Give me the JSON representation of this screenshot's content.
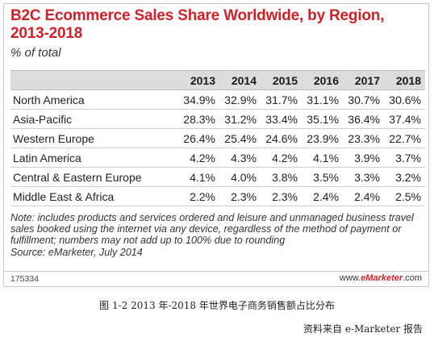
{
  "chart_data": {
    "type": "table",
    "title": "B2C Ecommerce Sales Share Worldwide, by Region, 2013-2018",
    "subtitle": "% of total",
    "row_header": "",
    "columns": [
      "2013",
      "2014",
      "2015",
      "2016",
      "2017",
      "2018"
    ],
    "rows": [
      {
        "region": "North America",
        "values": [
          "34.9%",
          "32.9%",
          "31.7%",
          "31.1%",
          "30.7%",
          "30.6%"
        ]
      },
      {
        "region": "Asia-Pacific",
        "values": [
          "28.3%",
          "31.2%",
          "33.4%",
          "35.1%",
          "36.4%",
          "37.4%"
        ]
      },
      {
        "region": "Western Europe",
        "values": [
          "26.4%",
          "25.4%",
          "24.6%",
          "23.9%",
          "23.3%",
          "22.7%"
        ]
      },
      {
        "region": "Latin America",
        "values": [
          "4.2%",
          "4.3%",
          "4.2%",
          "4.1%",
          "3.9%",
          "3.7%"
        ]
      },
      {
        "region": "Central & Eastern Europe",
        "values": [
          "4.1%",
          "4.0%",
          "3.8%",
          "3.5%",
          "3.3%",
          "3.2%"
        ]
      },
      {
        "region": "Middle East & Africa",
        "values": [
          "2.2%",
          "2.3%",
          "2.3%",
          "2.4%",
          "2.4%",
          "2.5%"
        ]
      }
    ],
    "note": "Note: includes products and services ordered and leisure and unmanaged business travel sales booked using the internet via any device, regardless of the method of payment or fulfillment; numbers may not add up to 100% due to rounding",
    "source": "Source: eMarketer, July 2014"
  },
  "footer": {
    "code": "175334",
    "site_prefix": "www.",
    "site_brand": "eMarketer",
    "site_suffix": ".com"
  },
  "caption": "图 1-2    2013 年-2018 年世界电子商务销售额占比分布",
  "attribution": "资料来自 e-Marketer 报告",
  "colors": {
    "title": "#d32027",
    "header_band": "#dcdcdc"
  }
}
